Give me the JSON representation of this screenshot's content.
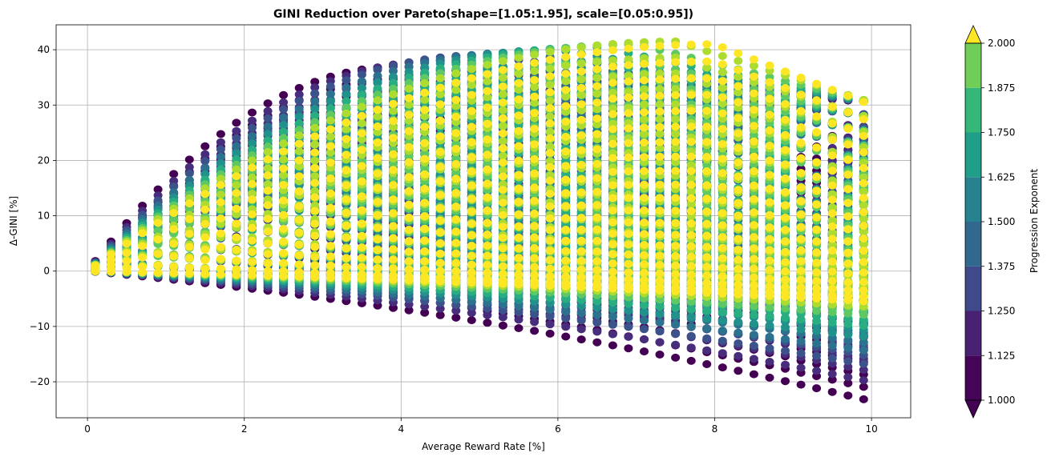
{
  "chart_data": {
    "type": "scatter",
    "title": "GINI Reduction over Pareto(shape=[1.05:1.95], scale=[0.05:0.95])",
    "xlabel": "Average Reward Rate [%]",
    "ylabel": "Δ-GINI [%]",
    "xlim": [
      -0.4,
      10.5
    ],
    "ylim": [
      -26.5,
      44.5
    ],
    "xticks": [
      0,
      2,
      4,
      6,
      8,
      10
    ],
    "yticks": [
      -20,
      -10,
      0,
      10,
      20,
      30,
      40
    ],
    "ytick_labels": [
      "−20",
      "−10",
      "0",
      "10",
      "20",
      "30",
      "40"
    ],
    "grid": true,
    "x_points": {
      "start": 0.1,
      "end": 10.0,
      "step": 0.2
    },
    "series_envelope": [
      {
        "exponent": 1.0,
        "color": "#440154",
        "upper_peak_x": 4.0,
        "upper_peak_y": 37,
        "upper_end_y": 30.5,
        "lower_mid_y": -12,
        "lower_end_y": -23.5
      },
      {
        "exponent": 1.125,
        "color": "#472d7b",
        "upper_peak_x": 4.5,
        "upper_peak_y": 38,
        "upper_end_y": 30.5,
        "lower_mid_y": -10.5,
        "lower_end_y": -20
      },
      {
        "exponent": 1.25,
        "color": "#3b528b",
        "upper_peak_x": 5.0,
        "upper_peak_y": 39,
        "upper_end_y": 30.5,
        "lower_mid_y": -9,
        "lower_end_y": -17
      },
      {
        "exponent": 1.375,
        "color": "#2c728e",
        "upper_peak_x": 5.5,
        "upper_peak_y": 39.5,
        "upper_end_y": 30.5,
        "lower_mid_y": -7.8,
        "lower_end_y": -14.5
      },
      {
        "exponent": 1.5,
        "color": "#21918c",
        "upper_peak_x": 6.0,
        "upper_peak_y": 40,
        "upper_end_y": 30.5,
        "lower_mid_y": -6.5,
        "lower_end_y": -12
      },
      {
        "exponent": 1.625,
        "color": "#28ae80",
        "upper_peak_x": 6.5,
        "upper_peak_y": 40.5,
        "upper_end_y": 30.5,
        "lower_mid_y": -5.5,
        "lower_end_y": -10
      },
      {
        "exponent": 1.75,
        "color": "#5ec962",
        "upper_peak_x": 7.0,
        "upper_peak_y": 41,
        "upper_end_y": 30.5,
        "lower_mid_y": -4.5,
        "lower_end_y": -8
      },
      {
        "exponent": 1.875,
        "color": "#addc30",
        "upper_peak_x": 7.5,
        "upper_peak_y": 41.5,
        "upper_end_y": 30.5,
        "lower_mid_y": -3.5,
        "lower_end_y": -6.5
      },
      {
        "exponent": 2.0,
        "color": "#fde725",
        "upper_peak_x": 8.0,
        "upper_peak_y": 41,
        "upper_end_y": 30.0,
        "lower_mid_y": -2.5,
        "lower_end_y": -5.5
      }
    ],
    "colorbar": {
      "label": "Progression Exponent",
      "ticks": [
        1.0,
        1.125,
        1.25,
        1.375,
        1.5,
        1.625,
        1.75,
        1.875,
        2.0
      ],
      "tick_labels": [
        "1.000",
        "1.125",
        "1.250",
        "1.375",
        "1.500",
        "1.625",
        "1.750",
        "1.875",
        "2.000"
      ],
      "bands": [
        "#450457",
        "#482173",
        "#3e4a89",
        "#31688e",
        "#26828e",
        "#1f9e89",
        "#35b779",
        "#6ece58",
        "#b5de2b"
      ],
      "under_color": "#440154",
      "over_color": "#fde725",
      "extend": "both"
    }
  }
}
